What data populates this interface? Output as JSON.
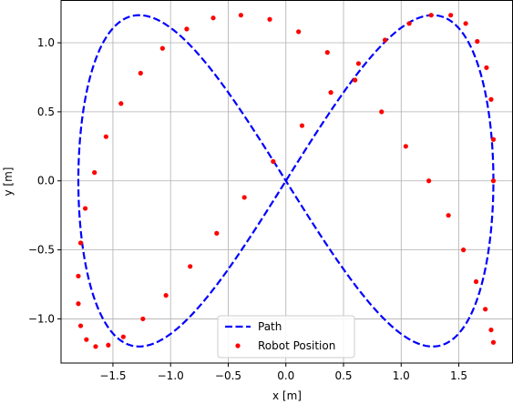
{
  "chart_data": {
    "type": "line",
    "title": "",
    "xlabel": "x [m]",
    "ylabel": "y [m]",
    "xlim": [
      -1.95,
      1.97
    ],
    "ylim": [
      -1.32,
      1.31
    ],
    "xticks": [
      -1.5,
      -1.0,
      -0.5,
      0.0,
      0.5,
      1.0,
      1.5
    ],
    "xtick_labels": [
      "−1.5",
      "−1.0",
      "−0.5",
      "0.0",
      "0.5",
      "1.0",
      "1.5"
    ],
    "yticks": [
      -1.0,
      -0.5,
      0.0,
      0.5,
      1.0
    ],
    "ytick_labels": [
      "−1.0",
      "−0.5",
      "0.0",
      "0.5",
      "1.0"
    ],
    "grid": true,
    "legend_position": "bottom-center",
    "series": [
      {
        "name": "Path",
        "style": "dashed-line",
        "color": "#0000ff",
        "curve": "lemniscate",
        "x_amplitude": 1.8,
        "y_amplitude": 1.2,
        "x": [
          1.8,
          1.8,
          1.78,
          1.74,
          1.66,
          1.56,
          1.43,
          1.26,
          1.07,
          0.86,
          0.63,
          0.39,
          0.14,
          -0.11,
          -0.36,
          -0.6,
          -0.83,
          -1.04,
          -1.24,
          -1.41,
          -1.54,
          -1.65,
          -1.73,
          -1.78,
          -1.8,
          -1.8,
          -1.78,
          -1.74,
          -1.66,
          -1.56,
          -1.43,
          -1.26,
          -1.07,
          -0.86,
          -0.63,
          -0.39,
          -0.14,
          0.11,
          0.36,
          0.6,
          0.83,
          1.04,
          1.24,
          1.41,
          1.54,
          1.65,
          1.73,
          1.78,
          1.8
        ],
        "y": [
          0.0,
          0.3,
          0.59,
          0.82,
          1.01,
          1.14,
          1.2,
          1.2,
          1.14,
          1.02,
          0.85,
          0.64,
          0.4,
          0.14,
          -0.12,
          -0.38,
          -0.62,
          -0.83,
          -1.0,
          -1.13,
          -1.19,
          -1.2,
          -1.15,
          -1.05,
          -0.89,
          -0.69,
          -0.45,
          -0.2,
          0.06,
          0.32,
          0.56,
          0.78,
          0.96,
          1.1,
          1.18,
          1.2,
          1.17,
          1.08,
          0.93,
          0.73,
          0.5,
          0.25,
          0.0,
          -0.25,
          -0.5,
          -0.73,
          -0.93,
          -1.08,
          -1.17
        ]
      },
      {
        "name": "Robot Position",
        "style": "dots",
        "color": "#ff0000",
        "x": [
          1.8,
          1.8,
          1.78,
          1.74,
          1.66,
          1.56,
          1.43,
          1.26,
          1.07,
          0.86,
          0.63,
          0.39,
          0.14,
          -0.11,
          -0.36,
          -0.6,
          -0.83,
          -1.04,
          -1.24,
          -1.41,
          -1.54,
          -1.65,
          -1.73,
          -1.78,
          -1.8,
          -1.8,
          -1.78,
          -1.74,
          -1.66,
          -1.56,
          -1.43,
          -1.26,
          -1.07,
          -0.86,
          -0.63,
          -0.39,
          -0.14,
          0.11,
          0.36,
          0.6,
          0.83,
          1.04,
          1.24,
          1.41,
          1.54,
          1.65,
          1.73,
          1.78,
          1.8
        ],
        "y": [
          0.0,
          0.3,
          0.59,
          0.82,
          1.01,
          1.14,
          1.2,
          1.2,
          1.14,
          1.02,
          0.85,
          0.64,
          0.4,
          0.14,
          -0.12,
          -0.38,
          -0.62,
          -0.83,
          -1.0,
          -1.13,
          -1.19,
          -1.2,
          -1.15,
          -1.05,
          -0.89,
          -0.69,
          -0.45,
          -0.2,
          0.06,
          0.32,
          0.56,
          0.78,
          0.96,
          1.1,
          1.18,
          1.2,
          1.17,
          1.08,
          0.93,
          0.73,
          0.5,
          0.25,
          0.0,
          -0.25,
          -0.5,
          -0.73,
          -0.93,
          -1.08,
          -1.17
        ]
      }
    ],
    "legend": {
      "entries": [
        {
          "label": "Path",
          "marker": "dashed-line",
          "color": "#0000ff"
        },
        {
          "label": "Robot Position",
          "marker": "dot",
          "color": "#ff0000"
        }
      ]
    }
  }
}
